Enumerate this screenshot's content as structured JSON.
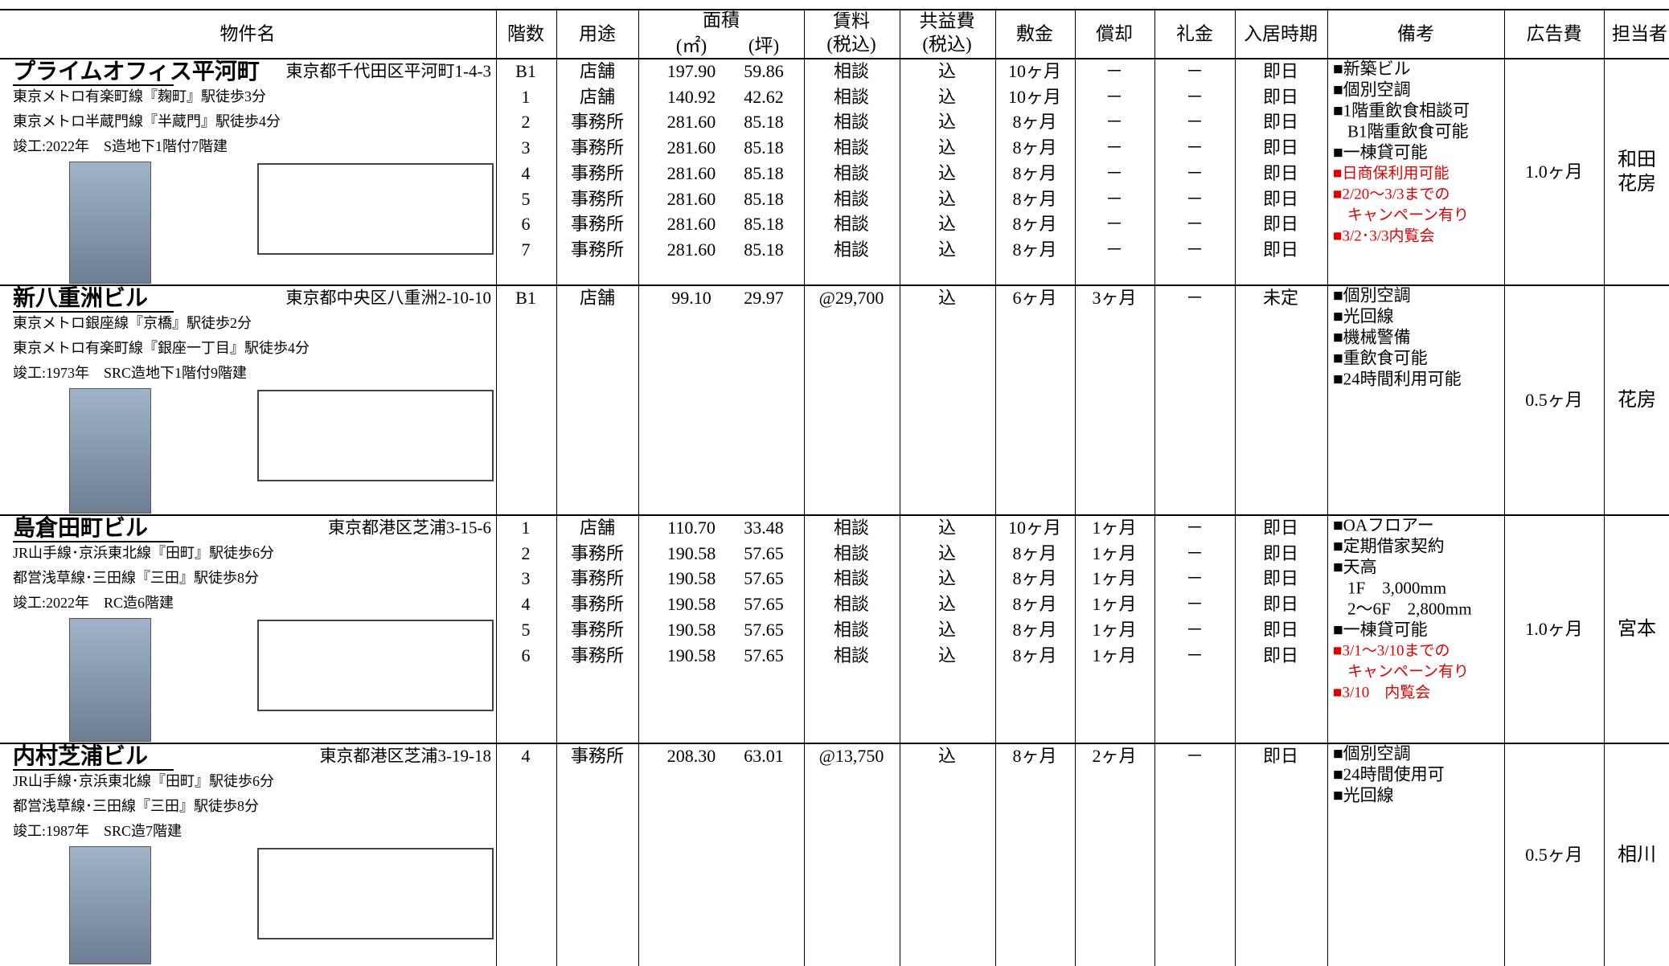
{
  "header": {
    "name": "物件名",
    "floor": "階数",
    "use": "用途",
    "area": "面積",
    "area_sqm": "(㎡)",
    "area_tsubo": "(坪)",
    "rent": "賃料",
    "rent_tax": "(税込)",
    "common": "共益費",
    "common_tax": "(税込)",
    "deposit": "敷金",
    "amortization": "償却",
    "key_money": "礼金",
    "move_in": "入居時期",
    "remarks": "備考",
    "ad_fee": "広告費",
    "staff": "担当者"
  },
  "properties": [
    {
      "name": "プライムオフィス平河町",
      "address": "東京都千代田区平河町1-4-3",
      "access": [
        "東京メトロ有楽町線『麹町』駅徒歩3分",
        "東京メトロ半蔵門線『半蔵門』駅徒歩4分"
      ],
      "built": "竣工:2022年　S造地下1階付7階建",
      "floors": [
        [
          "B1",
          "店舗",
          "197.90",
          "59.86",
          "相談",
          "込",
          "10ヶ月",
          "－",
          "－",
          "即日"
        ],
        [
          "1",
          "店舗",
          "140.92",
          "42.62",
          "相談",
          "込",
          "10ヶ月",
          "－",
          "－",
          "即日"
        ],
        [
          "2",
          "事務所",
          "281.60",
          "85.18",
          "相談",
          "込",
          "8ヶ月",
          "－",
          "－",
          "即日"
        ],
        [
          "3",
          "事務所",
          "281.60",
          "85.18",
          "相談",
          "込",
          "8ヶ月",
          "－",
          "－",
          "即日"
        ],
        [
          "4",
          "事務所",
          "281.60",
          "85.18",
          "相談",
          "込",
          "8ヶ月",
          "－",
          "－",
          "即日"
        ],
        [
          "5",
          "事務所",
          "281.60",
          "85.18",
          "相談",
          "込",
          "8ヶ月",
          "－",
          "－",
          "即日"
        ],
        [
          "6",
          "事務所",
          "281.60",
          "85.18",
          "相談",
          "込",
          "8ヶ月",
          "－",
          "－",
          "即日"
        ],
        [
          "7",
          "事務所",
          "281.60",
          "85.18",
          "相談",
          "込",
          "8ヶ月",
          "－",
          "－",
          "即日"
        ]
      ],
      "remarks": [
        {
          "text": "■新築ビル",
          "red": false
        },
        {
          "text": "■個別空調",
          "red": false
        },
        {
          "text": "■1階重飲食相談可",
          "red": false
        },
        {
          "text": "B1階重飲食可能",
          "red": false
        },
        {
          "text": "■一棟貸可能",
          "red": false
        },
        {
          "text": "■日商保利用可能",
          "red": true
        },
        {
          "text": "■2/20～3/3までの",
          "red": true
        },
        {
          "text": "キャンペーン有り",
          "red": true
        },
        {
          "text": "■3/2･3/3内覧会",
          "red": true
        }
      ],
      "ad_fee": "1.0ヶ月",
      "staff": [
        "和田",
        "花房"
      ]
    },
    {
      "name": "新八重洲ビル",
      "address": "東京都中央区八重洲2-10-10",
      "access": [
        "東京メトロ銀座線『京橋』駅徒歩2分",
        "東京メトロ有楽町線『銀座一丁目』駅徒歩4分"
      ],
      "built": "竣工:1973年　SRC造地下1階付9階建",
      "floors": [
        [
          "B1",
          "店舗",
          "99.10",
          "29.97",
          "@29,700",
          "込",
          "6ヶ月",
          "3ヶ月",
          "－",
          "未定"
        ]
      ],
      "remarks": [
        {
          "text": "■個別空調",
          "red": false
        },
        {
          "text": "■光回線",
          "red": false
        },
        {
          "text": "■機械警備",
          "red": false
        },
        {
          "text": "■重飲食可能",
          "red": false
        },
        {
          "text": "■24時間利用可能",
          "red": false
        }
      ],
      "ad_fee": "0.5ヶ月",
      "staff": [
        "花房"
      ]
    },
    {
      "name": "島倉田町ビル",
      "address": "東京都港区芝浦3-15-6",
      "access": [
        "JR山手線･京浜東北線『田町』駅徒歩6分",
        "都営浅草線･三田線『三田』駅徒歩8分"
      ],
      "built": "竣工:2022年　RC造6階建",
      "floors": [
        [
          "1",
          "店舗",
          "110.70",
          "33.48",
          "相談",
          "込",
          "10ヶ月",
          "1ヶ月",
          "－",
          "即日"
        ],
        [
          "2",
          "事務所",
          "190.58",
          "57.65",
          "相談",
          "込",
          "8ヶ月",
          "1ヶ月",
          "－",
          "即日"
        ],
        [
          "3",
          "事務所",
          "190.58",
          "57.65",
          "相談",
          "込",
          "8ヶ月",
          "1ヶ月",
          "－",
          "即日"
        ],
        [
          "4",
          "事務所",
          "190.58",
          "57.65",
          "相談",
          "込",
          "8ヶ月",
          "1ヶ月",
          "－",
          "即日"
        ],
        [
          "5",
          "事務所",
          "190.58",
          "57.65",
          "相談",
          "込",
          "8ヶ月",
          "1ヶ月",
          "－",
          "即日"
        ],
        [
          "6",
          "事務所",
          "190.58",
          "57.65",
          "相談",
          "込",
          "8ヶ月",
          "1ヶ月",
          "－",
          "即日"
        ]
      ],
      "remarks": [
        {
          "text": "■OAフロアー",
          "red": false
        },
        {
          "text": "■定期借家契約",
          "red": false
        },
        {
          "text": "■天高",
          "red": false
        },
        {
          "text": "1F　3,000mm",
          "red": false
        },
        {
          "text": "2～6F　2,800mm",
          "red": false
        },
        {
          "text": "■一棟貸可能",
          "red": false
        },
        {
          "text": "■3/1～3/10までの",
          "red": true
        },
        {
          "text": "キャンペーン有り",
          "red": true
        },
        {
          "text": "■3/10　内覧会",
          "red": true
        }
      ],
      "ad_fee": "1.0ヶ月",
      "staff": [
        "宮本"
      ]
    },
    {
      "name": "内村芝浦ビル",
      "address": "東京都港区芝浦3-19-18",
      "access": [
        "JR山手線･京浜東北線『田町』駅徒歩6分",
        "都営浅草線･三田線『三田』駅徒歩8分"
      ],
      "built": "竣工:1987年　SRC造7階建",
      "floors": [
        [
          "4",
          "事務所",
          "208.30",
          "63.01",
          "@13,750",
          "込",
          "8ヶ月",
          "2ヶ月",
          "－",
          "即日"
        ]
      ],
      "remarks": [
        {
          "text": "■個別空調",
          "red": false
        },
        {
          "text": "■24時間使用可",
          "red": false
        },
        {
          "text": "■光回線",
          "red": false
        }
      ],
      "ad_fee": "0.5ヶ月",
      "staff": [
        "相川"
      ]
    }
  ]
}
